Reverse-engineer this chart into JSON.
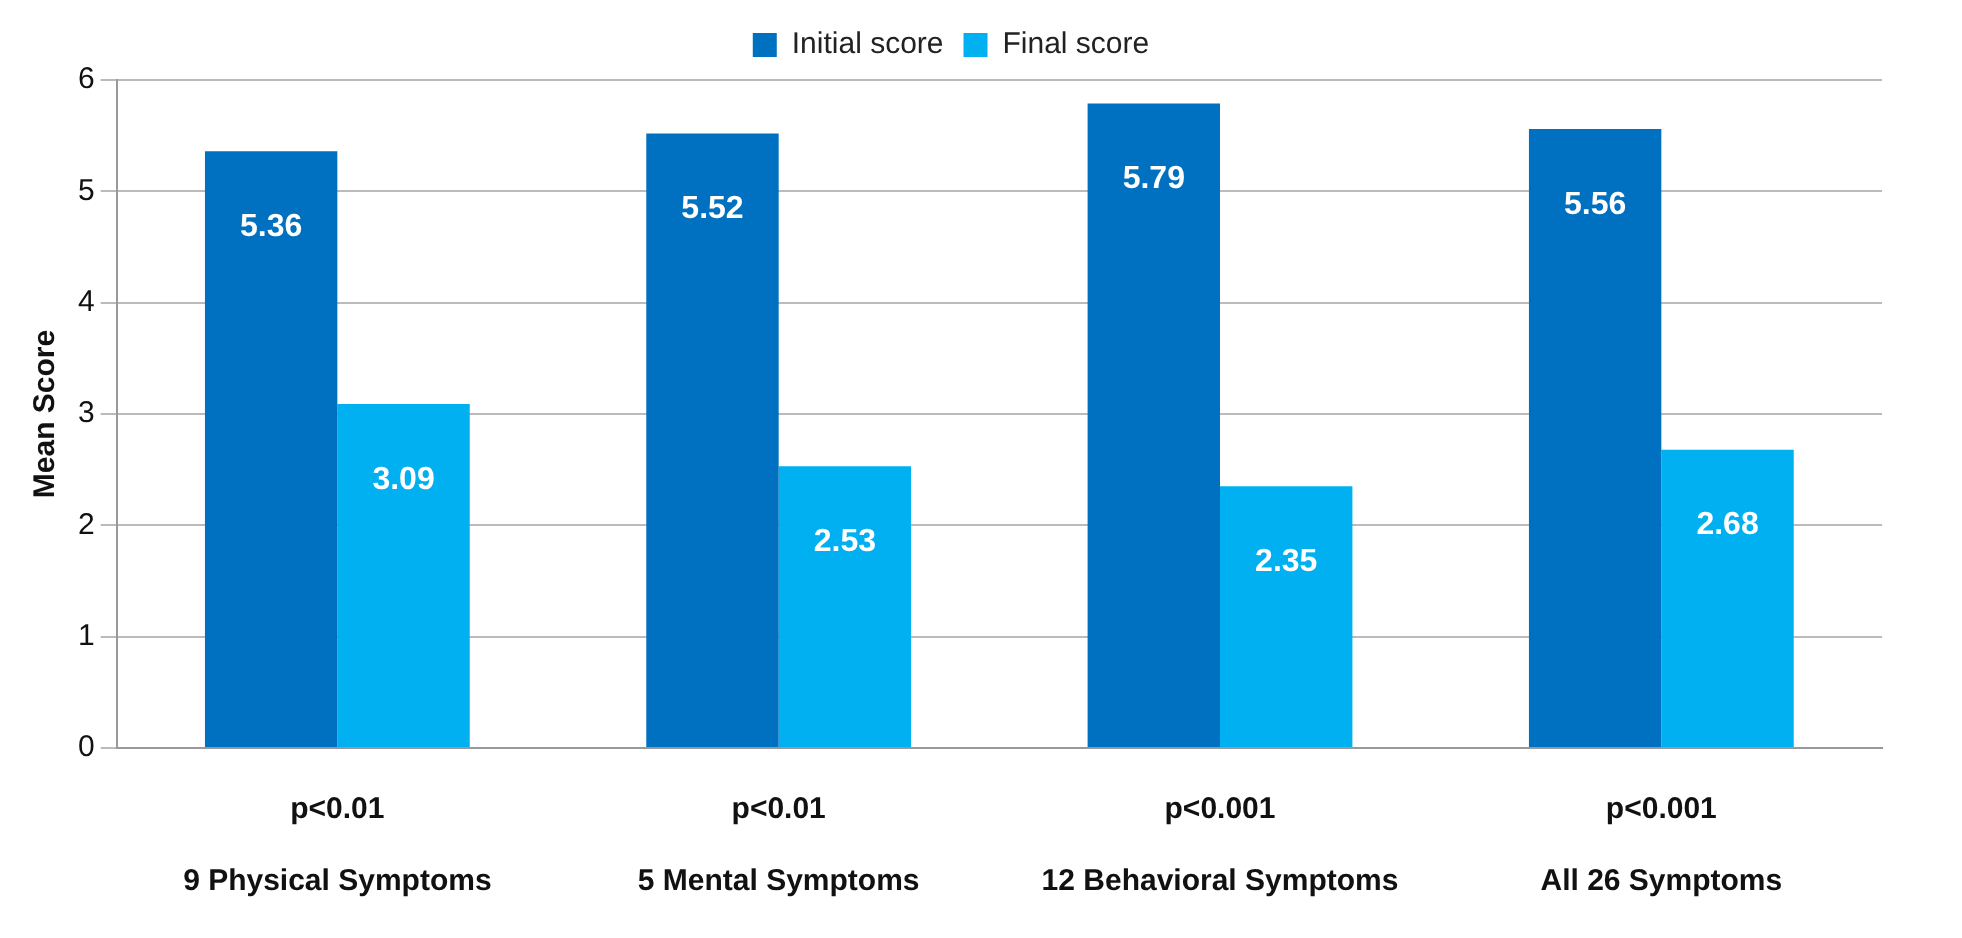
{
  "chart_data": {
    "type": "bar",
    "ylabel": "Mean Score",
    "categories": [
      "9 Physical Symptoms",
      "5 Mental Symptoms",
      "12 Behavioral Symptoms",
      "All 26 Symptoms"
    ],
    "series": [
      {
        "name": "Initial score",
        "color": "#0070c0",
        "values": [
          5.36,
          5.52,
          5.79,
          5.56
        ]
      },
      {
        "name": "Final score",
        "color": "#00b0f0",
        "values": [
          3.09,
          2.53,
          2.35,
          2.68
        ]
      }
    ],
    "ylim": [
      0,
      6
    ],
    "yticks": [
      0,
      1,
      2,
      3,
      4,
      5,
      6
    ],
    "grid": "y",
    "legend": "top",
    "data_labels": true,
    "annotations": [
      "p<0.01",
      "p<0.01",
      "p<0.001",
      "p<0.001"
    ]
  }
}
